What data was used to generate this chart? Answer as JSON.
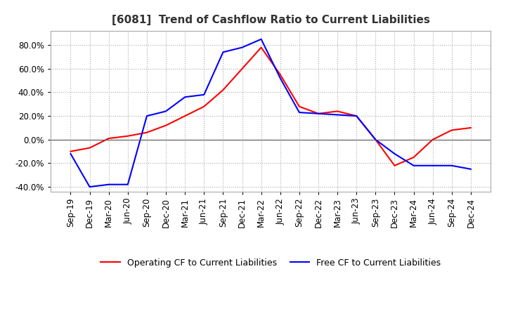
{
  "title": "[6081]  Trend of Cashflow Ratio to Current Liabilities",
  "legend": [
    "Operating CF to Current Liabilities",
    "Free CF to Current Liabilities"
  ],
  "line_colors": [
    "red",
    "blue"
  ],
  "ylim": [
    -0.44,
    0.92
  ],
  "yticks": [
    -0.4,
    -0.2,
    0.0,
    0.2,
    0.4,
    0.6,
    0.8
  ],
  "x_labels": [
    "Sep-19",
    "Dec-19",
    "Mar-20",
    "Jun-20",
    "Sep-20",
    "Dec-20",
    "Mar-21",
    "Jun-21",
    "Sep-21",
    "Dec-21",
    "Mar-22",
    "Jun-22",
    "Sep-22",
    "Dec-22",
    "Mar-23",
    "Jun-23",
    "Sep-23",
    "Dec-23",
    "Mar-24",
    "Jun-24",
    "Sep-24",
    "Dec-24"
  ],
  "operating_cf": [
    -0.1,
    -0.07,
    0.01,
    0.03,
    0.06,
    0.12,
    0.2,
    0.28,
    0.42,
    0.6,
    0.78,
    0.55,
    0.28,
    0.22,
    0.24,
    0.2,
    0.0,
    -0.22,
    -0.15,
    0.0,
    0.08,
    0.1
  ],
  "free_cf": [
    -0.12,
    -0.4,
    -0.38,
    -0.38,
    0.2,
    0.24,
    0.36,
    0.38,
    0.74,
    0.78,
    0.85,
    0.52,
    0.23,
    0.22,
    0.21,
    0.2,
    0.0,
    -0.12,
    -0.22,
    -0.22,
    -0.22,
    -0.25
  ],
  "background_color": "#ffffff",
  "grid_color": "#aaaaaa",
  "title_fontsize": 11,
  "tick_fontsize": 8.5
}
